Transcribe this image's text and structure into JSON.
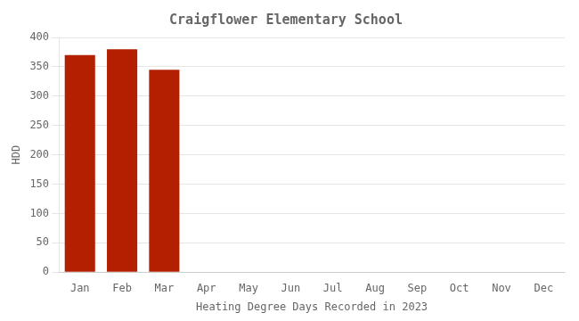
{
  "chart_data": {
    "type": "bar",
    "title": "Craigflower Elementary School",
    "xlabel": "Heating Degree Days Recorded in 2023",
    "ylabel": "HDD",
    "categories": [
      "Jan",
      "Feb",
      "Mar",
      "Apr",
      "May",
      "Jun",
      "Jul",
      "Aug",
      "Sep",
      "Oct",
      "Nov",
      "Dec"
    ],
    "values": [
      370,
      380,
      345,
      0,
      0,
      0,
      0,
      0,
      0,
      0,
      0,
      0
    ],
    "color": "#b32000",
    "ylim": [
      0,
      400
    ],
    "yticks": [
      0,
      50,
      100,
      150,
      200,
      250,
      300,
      350,
      400
    ],
    "grid": true
  }
}
